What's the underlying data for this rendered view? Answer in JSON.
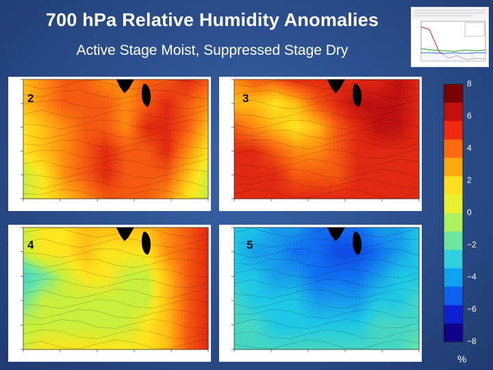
{
  "title": "700 hPa Relative Humidity Anomalies",
  "subtitle": "Active Stage Moist, Suppressed Stage Dry",
  "colorbar": {
    "unit": "%",
    "ticks": [
      "8",
      "6",
      "4",
      "2",
      "0",
      "−2",
      "−4",
      "−6",
      "−8"
    ],
    "colors": [
      "#7a0000",
      "#c01010",
      "#ee2a10",
      "#ff6a10",
      "#ffaa10",
      "#ffe020",
      "#e8f030",
      "#aef060",
      "#6ee6a0",
      "#30d0e0",
      "#10a0f0",
      "#1060f0",
      "#1020d0",
      "#10008a"
    ]
  },
  "chart_data": [
    {
      "type": "heatmap",
      "panel_label": "2",
      "field": "700 hPa relative humidity anomaly",
      "units": "%",
      "vmin": -8,
      "vmax": 8,
      "grid": [
        [
          3,
          4,
          5,
          5,
          4,
          4,
          5,
          5,
          6,
          5
        ],
        [
          3,
          4,
          5,
          5,
          5,
          4,
          5,
          6,
          5,
          4
        ],
        [
          2,
          3,
          4,
          5,
          5,
          4,
          6,
          6,
          5,
          3
        ],
        [
          2,
          3,
          4,
          5,
          6,
          5,
          5,
          6,
          4,
          2
        ],
        [
          1,
          2,
          4,
          5,
          6,
          5,
          5,
          5,
          3,
          1
        ],
        [
          1,
          2,
          3,
          4,
          5,
          5,
          5,
          4,
          2,
          1
        ]
      ]
    },
    {
      "type": "heatmap",
      "panel_label": "3",
      "field": "700 hPa relative humidity anomaly",
      "units": "%",
      "vmin": -8,
      "vmax": 8,
      "grid": [
        [
          4,
          5,
          5,
          6,
          6,
          6,
          6,
          6,
          7,
          6
        ],
        [
          3,
          3,
          2,
          3,
          5,
          6,
          7,
          7,
          7,
          6
        ],
        [
          5,
          4,
          3,
          2,
          3,
          5,
          6,
          7,
          7,
          6
        ],
        [
          6,
          6,
          5,
          4,
          4,
          5,
          6,
          6,
          6,
          6
        ],
        [
          6,
          6,
          6,
          5,
          5,
          5,
          6,
          6,
          6,
          6
        ],
        [
          6,
          6,
          6,
          6,
          6,
          6,
          6,
          6,
          6,
          6
        ]
      ]
    },
    {
      "type": "heatmap",
      "panel_label": "4",
      "field": "700 hPa relative humidity anomaly",
      "units": "%",
      "vmin": -8,
      "vmax": 8,
      "grid": [
        [
          1,
          2,
          2,
          3,
          3,
          3,
          3,
          4,
          5,
          6
        ],
        [
          1,
          2,
          2,
          3,
          2,
          2,
          2,
          4,
          5,
          6
        ],
        [
          -1,
          0,
          1,
          2,
          2,
          1,
          1,
          3,
          5,
          6
        ],
        [
          0,
          1,
          1,
          1,
          1,
          1,
          1,
          3,
          5,
          6
        ],
        [
          1,
          1,
          1,
          1,
          1,
          1,
          2,
          3,
          5,
          6
        ],
        [
          1,
          2,
          2,
          2,
          2,
          2,
          2,
          3,
          5,
          6
        ]
      ]
    },
    {
      "type": "heatmap",
      "panel_label": "5",
      "field": "700 hPa relative humidity anomaly",
      "units": "%",
      "vmin": -8,
      "vmax": 8,
      "grid": [
        [
          -2,
          -2,
          -3,
          -3,
          -4,
          -4,
          -4,
          -3,
          -3,
          -2
        ],
        [
          -2,
          -3,
          -3,
          -4,
          -4,
          -5,
          -5,
          -4,
          -3,
          -2
        ],
        [
          -2,
          -2,
          -3,
          -3,
          -4,
          -4,
          -4,
          -3,
          -2,
          -2
        ],
        [
          -1,
          -2,
          -2,
          -2,
          -3,
          -3,
          -3,
          -2,
          -2,
          -1
        ],
        [
          -1,
          -1,
          -2,
          -2,
          -2,
          -2,
          -2,
          -1,
          -1,
          -1
        ],
        [
          -1,
          -1,
          -1,
          -1,
          -1,
          -1,
          -1,
          -1,
          -1,
          0
        ]
      ]
    }
  ]
}
